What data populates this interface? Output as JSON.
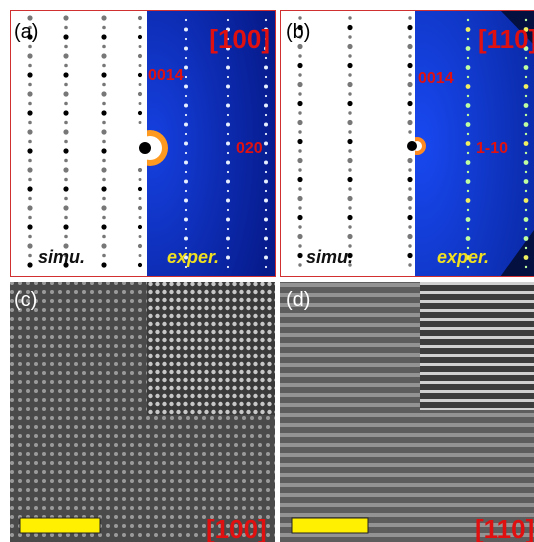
{
  "panels": [
    {
      "label": "(a)",
      "zone": "[100]",
      "spots": [
        "0014",
        "020"
      ],
      "left_caption": "simu.",
      "right_caption": "exper."
    },
    {
      "label": "(b)",
      "zone": "[110]",
      "spots": [
        "0014",
        "1-10"
      ],
      "left_caption": "simu.",
      "right_caption": "exper."
    },
    {
      "label": "(c)",
      "zone": "[100]"
    },
    {
      "label": "(d)",
      "zone": "[110]"
    }
  ]
}
